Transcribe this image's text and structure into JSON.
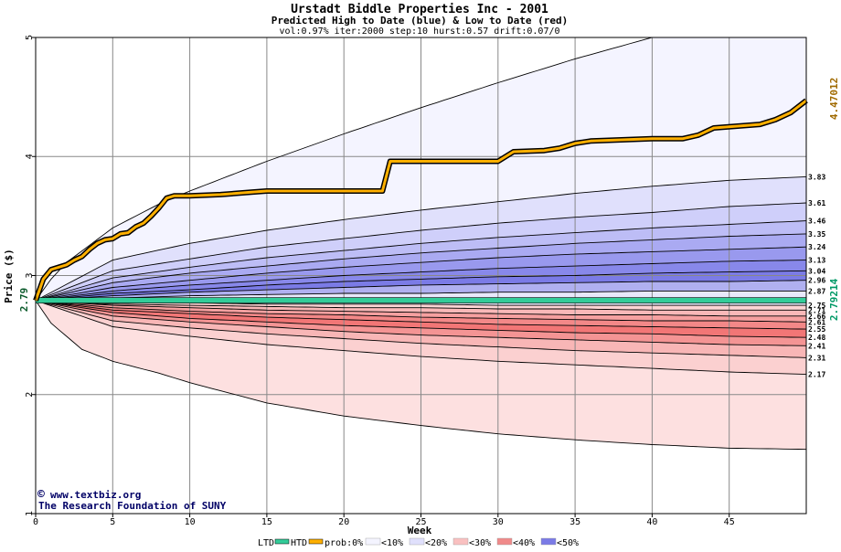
{
  "chart_data": {
    "type": "area",
    "title": "Urstadt Biddle Properties Inc - 2001",
    "subtitle": "Predicted High to Date (blue) &  Low to Date (red)",
    "params": "vol:0.97% iter:2000 step:10 hurst:0.57 drift:0.07/0",
    "xlabel": "Week",
    "ylabel": "Price ($)",
    "xlim": [
      0,
      50
    ],
    "ylim": [
      1,
      5
    ],
    "x_ticks": [
      0,
      5,
      10,
      15,
      20,
      25,
      30,
      35,
      40,
      45
    ],
    "y_ticks": [
      1,
      2,
      3,
      4,
      5
    ],
    "grid": true,
    "start_price": 2.79,
    "start_price_label": "2.79",
    "htd_final_label": "4.47012",
    "ltd_final_label": "2.79214",
    "right_labels": [
      "3.83",
      "3.61",
      "3.46",
      "3.35",
      "3.24",
      "3.13",
      "3.04",
      "2.96",
      "2.87",
      "2.75",
      "2.71",
      "2.66",
      "2.61",
      "2.55",
      "2.48",
      "2.41",
      "2.31",
      "2.17"
    ],
    "upper_quantiles": [
      {
        "x": [
          0,
          1,
          2,
          5,
          8,
          10,
          15,
          20,
          25,
          30,
          35,
          40,
          45,
          50
        ],
        "y": [
          2.79,
          2.97,
          3.11,
          3.4,
          3.6,
          3.71,
          3.96,
          4.19,
          4.41,
          4.62,
          4.82,
          5.0,
          5.15,
          5.3
        ]
      },
      {
        "x": [
          0,
          5,
          10,
          15,
          20,
          25,
          30,
          35,
          40,
          45,
          50
        ],
        "y": [
          2.79,
          3.13,
          3.27,
          3.38,
          3.47,
          3.55,
          3.62,
          3.69,
          3.75,
          3.8,
          3.83
        ]
      },
      {
        "x": [
          0,
          5,
          10,
          15,
          20,
          25,
          30,
          35,
          40,
          45,
          50
        ],
        "y": [
          2.79,
          3.04,
          3.14,
          3.24,
          3.31,
          3.38,
          3.44,
          3.49,
          3.53,
          3.58,
          3.61
        ]
      },
      {
        "x": [
          0,
          5,
          10,
          15,
          20,
          25,
          30,
          35,
          40,
          45,
          50
        ],
        "y": [
          2.79,
          2.98,
          3.07,
          3.15,
          3.21,
          3.27,
          3.32,
          3.36,
          3.4,
          3.43,
          3.46
        ]
      },
      {
        "x": [
          0,
          5,
          10,
          15,
          20,
          25,
          30,
          35,
          40,
          45,
          50
        ],
        "y": [
          2.79,
          2.94,
          3.02,
          3.08,
          3.14,
          3.19,
          3.23,
          3.27,
          3.3,
          3.33,
          3.35
        ]
      },
      {
        "x": [
          0,
          5,
          10,
          15,
          20,
          25,
          30,
          35,
          40,
          45,
          50
        ],
        "y": [
          2.79,
          2.9,
          2.96,
          3.02,
          3.07,
          3.11,
          3.15,
          3.18,
          3.2,
          3.22,
          3.24
        ]
      },
      {
        "x": [
          0,
          5,
          10,
          15,
          20,
          25,
          30,
          35,
          40,
          45,
          50
        ],
        "y": [
          2.79,
          2.87,
          2.92,
          2.96,
          3.0,
          3.03,
          3.06,
          3.08,
          3.1,
          3.12,
          3.13
        ]
      },
      {
        "x": [
          0,
          5,
          10,
          15,
          20,
          25,
          30,
          35,
          40,
          45,
          50
        ],
        "y": [
          2.79,
          2.85,
          2.88,
          2.92,
          2.95,
          2.97,
          2.99,
          3.0,
          3.02,
          3.03,
          3.04
        ]
      },
      {
        "x": [
          0,
          5,
          10,
          15,
          20,
          25,
          30,
          35,
          40,
          45,
          50
        ],
        "y": [
          2.79,
          2.83,
          2.86,
          2.88,
          2.9,
          2.92,
          2.93,
          2.94,
          2.95,
          2.95,
          2.96
        ]
      },
      {
        "x": [
          0,
          5,
          10,
          15,
          20,
          25,
          30,
          35,
          40,
          45,
          50
        ],
        "y": [
          2.79,
          2.81,
          2.83,
          2.84,
          2.85,
          2.85,
          2.86,
          2.86,
          2.87,
          2.87,
          2.87
        ]
      }
    ],
    "lower_quantiles": [
      {
        "x": [
          0,
          5,
          10,
          15,
          20,
          25,
          30,
          35,
          40,
          45,
          50
        ],
        "y": [
          2.79,
          2.77,
          2.77,
          2.76,
          2.76,
          2.76,
          2.75,
          2.75,
          2.75,
          2.75,
          2.75
        ]
      },
      {
        "x": [
          0,
          5,
          10,
          15,
          20,
          25,
          30,
          35,
          40,
          45,
          50
        ],
        "y": [
          2.79,
          2.76,
          2.75,
          2.74,
          2.73,
          2.73,
          2.72,
          2.72,
          2.71,
          2.71,
          2.71
        ]
      },
      {
        "x": [
          0,
          5,
          10,
          15,
          20,
          25,
          30,
          35,
          40,
          45,
          50
        ],
        "y": [
          2.79,
          2.75,
          2.73,
          2.71,
          2.7,
          2.69,
          2.68,
          2.67,
          2.67,
          2.66,
          2.66
        ]
      },
      {
        "x": [
          0,
          5,
          10,
          15,
          20,
          25,
          30,
          35,
          40,
          45,
          50
        ],
        "y": [
          2.79,
          2.73,
          2.7,
          2.68,
          2.67,
          2.65,
          2.64,
          2.63,
          2.62,
          2.62,
          2.61
        ]
      },
      {
        "x": [
          0,
          5,
          10,
          15,
          20,
          25,
          30,
          35,
          40,
          45,
          50
        ],
        "y": [
          2.79,
          2.71,
          2.68,
          2.65,
          2.63,
          2.61,
          2.59,
          2.58,
          2.57,
          2.56,
          2.55
        ]
      },
      {
        "x": [
          0,
          5,
          10,
          15,
          20,
          25,
          30,
          35,
          40,
          45,
          50
        ],
        "y": [
          2.79,
          2.69,
          2.64,
          2.61,
          2.58,
          2.56,
          2.54,
          2.52,
          2.51,
          2.49,
          2.48
        ]
      },
      {
        "x": [
          0,
          5,
          10,
          15,
          20,
          25,
          30,
          35,
          40,
          45,
          50
        ],
        "y": [
          2.79,
          2.66,
          2.61,
          2.57,
          2.53,
          2.5,
          2.48,
          2.46,
          2.44,
          2.42,
          2.41
        ]
      },
      {
        "x": [
          0,
          5,
          10,
          15,
          20,
          25,
          30,
          35,
          40,
          45,
          50
        ],
        "y": [
          2.79,
          2.62,
          2.56,
          2.51,
          2.47,
          2.43,
          2.4,
          2.37,
          2.35,
          2.33,
          2.31
        ]
      },
      {
        "x": [
          0,
          5,
          10,
          15,
          20,
          25,
          30,
          35,
          40,
          45,
          50
        ],
        "y": [
          2.79,
          2.57,
          2.49,
          2.42,
          2.37,
          2.32,
          2.28,
          2.25,
          2.22,
          2.19,
          2.17
        ]
      },
      {
        "x": [
          0,
          1,
          3,
          5,
          8,
          10,
          15,
          20,
          25,
          30,
          35,
          40,
          45,
          50
        ],
        "y": [
          2.79,
          2.6,
          2.38,
          2.28,
          2.18,
          2.1,
          1.93,
          1.82,
          1.74,
          1.67,
          1.62,
          1.58,
          1.55,
          1.54
        ]
      }
    ],
    "htd": {
      "x": [
        0,
        0.5,
        1,
        2,
        2.5,
        3,
        3.5,
        4,
        4.5,
        5,
        5.5,
        6,
        6.5,
        7,
        7.5,
        8,
        8.5,
        9,
        10,
        12,
        14,
        15,
        18,
        21,
        22.5,
        23,
        25,
        28,
        30,
        31,
        33,
        34,
        35,
        36,
        38,
        40,
        42,
        43,
        44,
        47,
        48,
        49,
        50
      ],
      "y": [
        2.79,
        2.97,
        3.05,
        3.09,
        3.13,
        3.16,
        3.22,
        3.27,
        3.3,
        3.31,
        3.35,
        3.36,
        3.41,
        3.44,
        3.5,
        3.57,
        3.65,
        3.67,
        3.67,
        3.68,
        3.7,
        3.71,
        3.71,
        3.71,
        3.71,
        3.96,
        3.96,
        3.96,
        3.96,
        4.04,
        4.05,
        4.07,
        4.11,
        4.13,
        4.14,
        4.15,
        4.15,
        4.18,
        4.24,
        4.27,
        4.31,
        4.37,
        4.47
      ]
    },
    "ltd_value": 2.79214,
    "credit_site": "www.textbiz.org",
    "credit_org": "The Research Foundation of SUNY",
    "band_colors_upper": [
      "#f4f4ff",
      "#e0e0fc",
      "#cfcffa",
      "#bdbdf6",
      "#aaaaf2",
      "#9999ee",
      "#8888ea",
      "#7b7be6",
      "#b0b0f0",
      "#e8e8fb"
    ],
    "band_colors_lower": [
      "#fdeeee",
      "#fcd4d4",
      "#f9b8b8",
      "#f6a0a0",
      "#f38888",
      "#f27676",
      "#f49494",
      "#f8b6b6",
      "#fbd0d0",
      "#fde0e0"
    ],
    "htd_color": "#ffb000",
    "ltd_color": "#33cc99",
    "htd_label_color": "#a06a00",
    "ltd_label_color": "#009966",
    "legend": {
      "ltd": "LTD",
      "htd": "HTD",
      "prob": "prob:0%",
      "items": [
        "<10%",
        "<20%",
        "<30%",
        "<40%",
        "<50%"
      ],
      "swatches": [
        "#f4f4ff",
        "#e0e0fc",
        "#f9c0c0",
        "#f08a8a",
        "#7b7be6"
      ]
    }
  }
}
